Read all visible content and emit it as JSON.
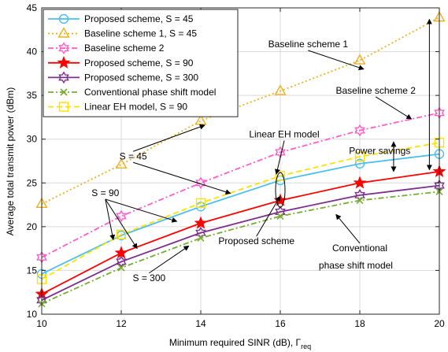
{
  "chart_data": {
    "type": "line",
    "xlabel": "Minimum required SINR (dB), Γ",
    "xlabel_sub": "req",
    "ylabel": "Average total transmit power (dBm)",
    "xlim": [
      10,
      20
    ],
    "ylim": [
      10,
      45
    ],
    "x_ticks": [
      10,
      12,
      14,
      16,
      18,
      20
    ],
    "y_ticks": [
      10,
      15,
      20,
      25,
      30,
      35,
      40,
      45
    ],
    "x_tick_labels": [
      "10",
      "12",
      "14",
      "16",
      "18",
      "20"
    ],
    "y_tick_labels": [
      "10",
      "15",
      "20",
      "25",
      "30",
      "35",
      "40",
      "45"
    ],
    "grid": true,
    "legend_position": "top-left",
    "x": [
      10,
      12,
      14,
      16,
      18,
      20
    ],
    "series": [
      {
        "name": "Proposed scheme, S = 45",
        "color": "#4DBEEE",
        "marker": "circle",
        "dash": "solid",
        "values": [
          14.6,
          19.0,
          22.3,
          25.3,
          27.2,
          28.3
        ]
      },
      {
        "name": "Baseline scheme 1, S = 45",
        "color": "#EDB120",
        "marker": "triangle",
        "dash": "dotted",
        "values": [
          22.6,
          27.1,
          32.1,
          35.5,
          39.0,
          43.9
        ]
      },
      {
        "name": "Baseline scheme 2",
        "color": "#FF5CC8",
        "marker": "hexagram",
        "dash": "dashdot",
        "values": [
          16.5,
          21.2,
          25.0,
          28.5,
          31.0,
          33.0
        ]
      },
      {
        "name": "Proposed scheme, S = 90",
        "color": "#FF0000",
        "marker": "star",
        "dash": "solid",
        "values": [
          12.3,
          17.0,
          20.4,
          23.0,
          25.0,
          26.3
        ]
      },
      {
        "name": "Proposed scheme, S = 300",
        "color": "#7E2F8E",
        "marker": "hexagram",
        "dash": "solid",
        "values": [
          11.6,
          16.0,
          19.3,
          21.7,
          23.6,
          24.7
        ]
      },
      {
        "name": "Conventional phase shift model",
        "color": "#77AC30",
        "marker": "x",
        "dash": "dashdot",
        "values": [
          11.2,
          15.3,
          18.7,
          21.2,
          23.0,
          24.0
        ]
      },
      {
        "name": "Linear EH model, S = 90",
        "color": "#FFE100",
        "marker": "square",
        "dash": "dashed",
        "values": [
          14.0,
          19.1,
          22.7,
          25.8,
          28.0,
          29.6
        ]
      }
    ],
    "annotations": [
      {
        "text": "Baseline scheme 1",
        "x": 16.7,
        "y": 40.5,
        "arrow_to": [
          18.1,
          38.0
        ]
      },
      {
        "text": "Baseline scheme 2",
        "x": 18.4,
        "y": 35.2,
        "arrow_to": [
          19.3,
          32.3
        ]
      },
      {
        "text": "Linear EH model",
        "x": 16.1,
        "y": 30.2,
        "arrow_to": [
          15.9,
          26.0
        ]
      },
      {
        "text": "Power savings",
        "x": 18.5,
        "y": 28.3
      },
      {
        "text": "S = 45",
        "x": 12.3,
        "y": 27.7,
        "arrow_to": [
          14.1,
          31.6
        ],
        "arrow_to_2": [
          14.75,
          23.8
        ]
      },
      {
        "text": "S = 90",
        "x": 11.6,
        "y": 23.5,
        "arrow_to": [
          11.8,
          18.5
        ],
        "arrow_to_2": [
          12.4,
          17.5
        ],
        "arrow_to_3": [
          13.4,
          20.6
        ]
      },
      {
        "text": "S = 300",
        "x": 12.7,
        "y": 13.8,
        "arrow_to": [
          13.7,
          17.8
        ]
      },
      {
        "text": "Proposed scheme",
        "x": 15.4,
        "y": 18.0,
        "arrow_to": [
          16.0,
          23.5
        ]
      },
      {
        "text": "Conventional",
        "x": 18.0,
        "y": 17.2,
        "arrow_to": [
          17.4,
          21.4
        ]
      },
      {
        "text": "phase shift model",
        "x": 17.9,
        "y": 15.2
      }
    ]
  }
}
